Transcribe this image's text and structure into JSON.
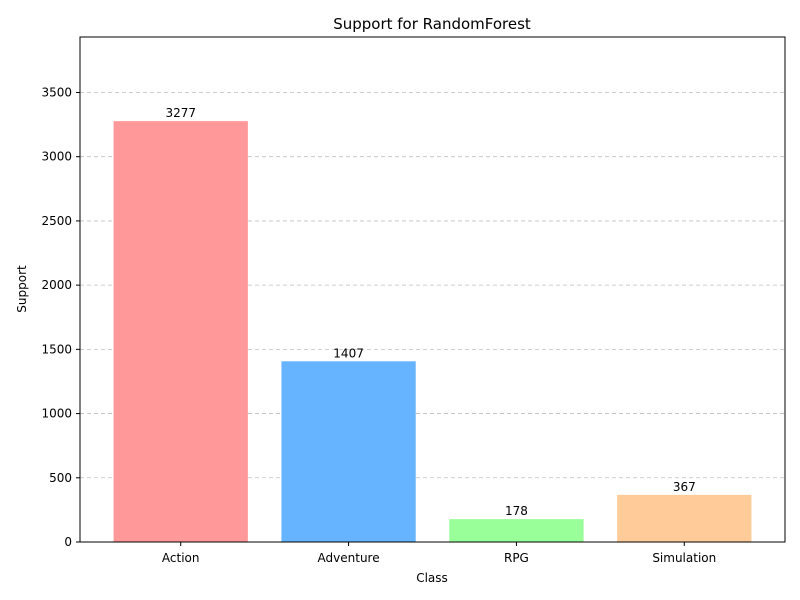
{
  "chart_data": {
    "type": "bar",
    "title": "Support for RandomForest",
    "xlabel": "Class",
    "ylabel": "Support",
    "categories": [
      "Action",
      "Adventure",
      "RPG",
      "Simulation"
    ],
    "values": [
      3277,
      1407,
      178,
      367
    ],
    "colors": [
      "#ff9999",
      "#66b3ff",
      "#99ff99",
      "#ffcc99"
    ],
    "ylim": [
      0,
      3932
    ],
    "yticks": [
      0,
      500,
      1000,
      1500,
      2000,
      2500,
      3000,
      3500
    ],
    "grid": "y-dashed",
    "legend": "none"
  }
}
